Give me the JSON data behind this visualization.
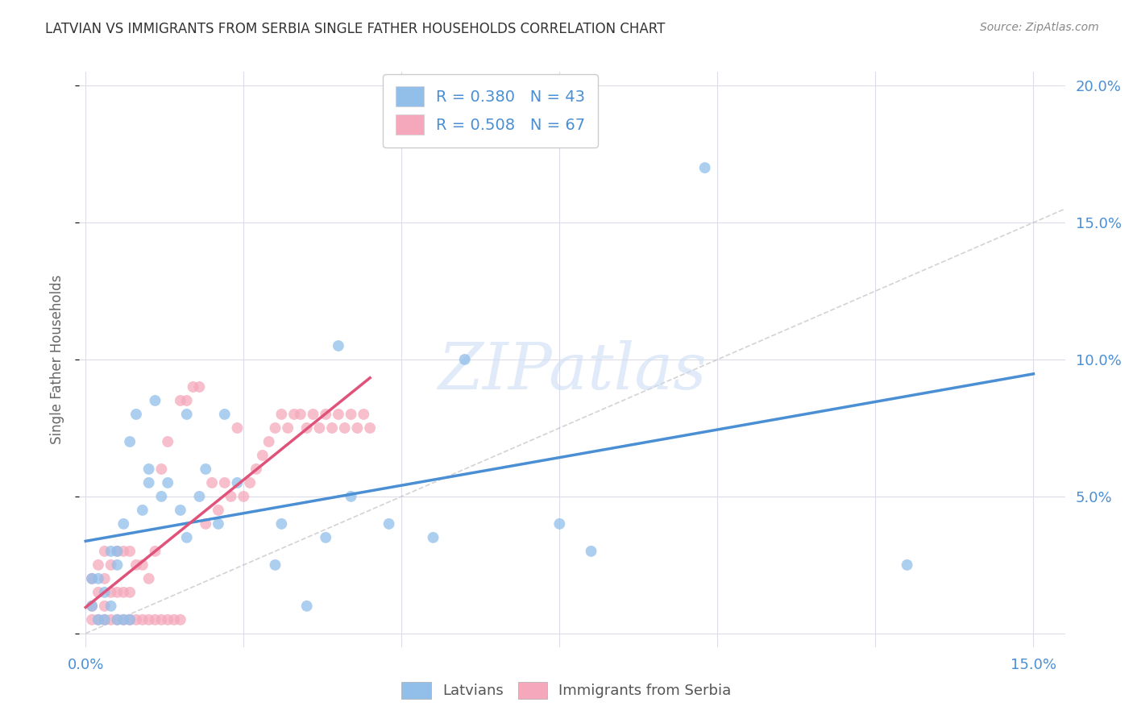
{
  "title": "LATVIAN VS IMMIGRANTS FROM SERBIA SINGLE FATHER HOUSEHOLDS CORRELATION CHART",
  "source": "Source: ZipAtlas.com",
  "ylabel": "Single Father Households",
  "xlim": [
    -0.001,
    0.155
  ],
  "ylim": [
    -0.005,
    0.205
  ],
  "xticks": [
    0.0,
    0.025,
    0.05,
    0.075,
    0.1,
    0.125,
    0.15
  ],
  "yticks": [
    0.0,
    0.05,
    0.1,
    0.15,
    0.2
  ],
  "latvian_color": "#92bfea",
  "serbia_color": "#f5a8bc",
  "latvian_line_color": "#4a8fd4",
  "serbia_line_color": "#e0527a",
  "diagonal_color": "#c8c8c8",
  "R_latvian": 0.38,
  "N_latvian": 43,
  "R_serbia": 0.508,
  "N_serbia": 67,
  "background_color": "#ffffff",
  "grid_color": "#dcdce8",
  "watermark_color": "#ccddf5",
  "latvian_points_x": [
    0.001,
    0.001,
    0.002,
    0.002,
    0.003,
    0.003,
    0.004,
    0.004,
    0.005,
    0.005,
    0.005,
    0.006,
    0.006,
    0.007,
    0.007,
    0.008,
    0.009,
    0.01,
    0.01,
    0.011,
    0.012,
    0.013,
    0.015,
    0.016,
    0.016,
    0.018,
    0.019,
    0.021,
    0.022,
    0.024,
    0.03,
    0.031,
    0.035,
    0.038,
    0.04,
    0.042,
    0.048,
    0.055,
    0.06,
    0.075,
    0.08,
    0.098,
    0.13
  ],
  "latvian_points_y": [
    0.02,
    0.01,
    0.005,
    0.02,
    0.005,
    0.015,
    0.01,
    0.03,
    0.005,
    0.025,
    0.03,
    0.005,
    0.04,
    0.005,
    0.07,
    0.08,
    0.045,
    0.055,
    0.06,
    0.085,
    0.05,
    0.055,
    0.045,
    0.035,
    0.08,
    0.05,
    0.06,
    0.04,
    0.08,
    0.055,
    0.025,
    0.04,
    0.01,
    0.035,
    0.105,
    0.05,
    0.04,
    0.035,
    0.1,
    0.04,
    0.03,
    0.17,
    0.025
  ],
  "serbia_points_x": [
    0.001,
    0.001,
    0.001,
    0.002,
    0.002,
    0.002,
    0.003,
    0.003,
    0.003,
    0.003,
    0.004,
    0.004,
    0.004,
    0.005,
    0.005,
    0.005,
    0.006,
    0.006,
    0.006,
    0.007,
    0.007,
    0.007,
    0.008,
    0.008,
    0.009,
    0.009,
    0.01,
    0.01,
    0.011,
    0.011,
    0.012,
    0.012,
    0.013,
    0.013,
    0.014,
    0.015,
    0.015,
    0.016,
    0.017,
    0.018,
    0.019,
    0.02,
    0.021,
    0.022,
    0.023,
    0.024,
    0.025,
    0.026,
    0.027,
    0.028,
    0.029,
    0.03,
    0.031,
    0.032,
    0.033,
    0.034,
    0.035,
    0.036,
    0.037,
    0.038,
    0.039,
    0.04,
    0.041,
    0.042,
    0.043,
    0.044,
    0.045
  ],
  "serbia_points_y": [
    0.005,
    0.01,
    0.02,
    0.005,
    0.015,
    0.025,
    0.005,
    0.01,
    0.02,
    0.03,
    0.005,
    0.015,
    0.025,
    0.005,
    0.015,
    0.03,
    0.005,
    0.015,
    0.03,
    0.005,
    0.015,
    0.03,
    0.005,
    0.025,
    0.005,
    0.025,
    0.005,
    0.02,
    0.005,
    0.03,
    0.005,
    0.06,
    0.005,
    0.07,
    0.005,
    0.005,
    0.085,
    0.085,
    0.09,
    0.09,
    0.04,
    0.055,
    0.045,
    0.055,
    0.05,
    0.075,
    0.05,
    0.055,
    0.06,
    0.065,
    0.07,
    0.075,
    0.08,
    0.075,
    0.08,
    0.08,
    0.075,
    0.08,
    0.075,
    0.08,
    0.075,
    0.08,
    0.075,
    0.08,
    0.075,
    0.08,
    0.075
  ]
}
